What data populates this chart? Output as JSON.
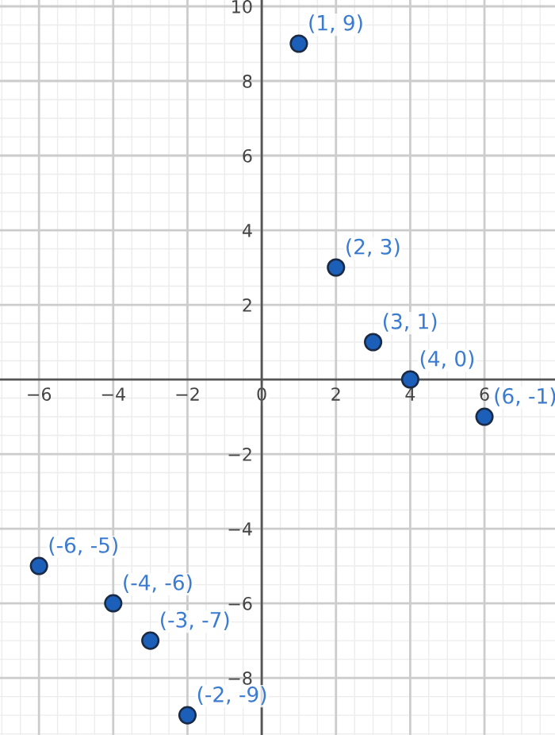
{
  "chart_data": {
    "type": "scatter",
    "x": [
      1,
      2,
      3,
      4,
      6,
      -6,
      -4,
      -3,
      -2
    ],
    "values": [
      9,
      3,
      1,
      0,
      -1,
      -5,
      -6,
      -7,
      -9
    ],
    "value_labels": [
      "(1, 9)",
      "(2, 3)",
      "(3, 1)",
      "(4, 0)",
      "(6, -1)",
      "(-6, -5)",
      "(-4, -6)",
      "(-3, -7)",
      "(-2, -9)"
    ],
    "color": "#1c5fb8",
    "marker": "circle",
    "xlim": [
      -7.05,
      7.9
    ],
    "ylim": [
      -9.53,
      10.17
    ],
    "xticks": [
      {
        "value": -6,
        "label": "−6"
      },
      {
        "value": -4,
        "label": "−4"
      },
      {
        "value": -2,
        "label": "−2"
      },
      0,
      2,
      4,
      6
    ],
    "yticks": [
      {
        "value": -8,
        "label": "−8"
      },
      {
        "value": -6,
        "label": "−6"
      },
      {
        "value": -4,
        "label": "−4"
      },
      {
        "value": -2,
        "label": "−2"
      },
      2,
      4,
      6,
      8,
      10
    ],
    "grid": true
  }
}
